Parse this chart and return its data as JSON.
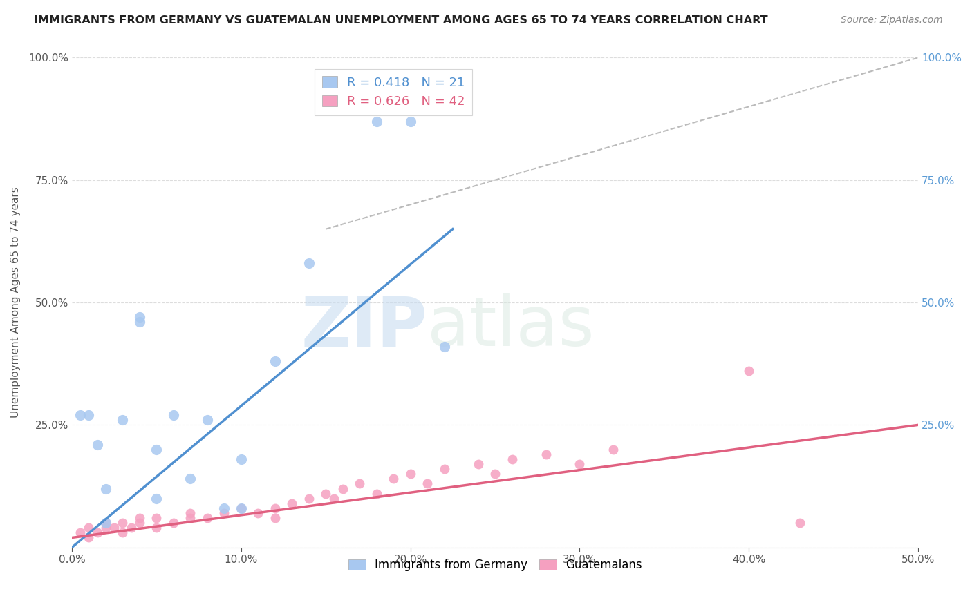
{
  "title": "IMMIGRANTS FROM GERMANY VS GUATEMALAN UNEMPLOYMENT AMONG AGES 65 TO 74 YEARS CORRELATION CHART",
  "source": "Source: ZipAtlas.com",
  "ylabel": "Unemployment Among Ages 65 to 74 years",
  "legend_labels": [
    "Immigrants from Germany",
    "Guatemalans"
  ],
  "legend_R": [
    0.418,
    0.626
  ],
  "legend_N": [
    21,
    42
  ],
  "color_blue": "#A8C8F0",
  "color_pink": "#F5A0C0",
  "color_blue_line": "#5090D0",
  "color_pink_line": "#E06080",
  "xlim": [
    0.0,
    0.5
  ],
  "ylim": [
    0.0,
    1.0
  ],
  "xticks": [
    0.0,
    0.1,
    0.2,
    0.3,
    0.4,
    0.5
  ],
  "yticks": [
    0.0,
    0.25,
    0.5,
    0.75,
    1.0
  ],
  "xtick_labels": [
    "0.0%",
    "10.0%",
    "20.0%",
    "30.0%",
    "40.0%",
    "50.0%"
  ],
  "ytick_labels_left": [
    "",
    "25.0%",
    "50.0%",
    "75.0%",
    "100.0%"
  ],
  "ytick_labels_right": [
    "",
    "25.0%",
    "50.0%",
    "75.0%",
    "100.0%"
  ],
  "blue_scatter_x": [
    0.005,
    0.01,
    0.015,
    0.02,
    0.02,
    0.03,
    0.04,
    0.04,
    0.05,
    0.05,
    0.06,
    0.07,
    0.08,
    0.09,
    0.1,
    0.1,
    0.12,
    0.14,
    0.18,
    0.2,
    0.22
  ],
  "blue_scatter_y": [
    0.27,
    0.27,
    0.21,
    0.05,
    0.12,
    0.26,
    0.47,
    0.46,
    0.2,
    0.1,
    0.27,
    0.14,
    0.26,
    0.08,
    0.18,
    0.08,
    0.38,
    0.58,
    0.87,
    0.87,
    0.41
  ],
  "pink_scatter_x": [
    0.005,
    0.01,
    0.01,
    0.015,
    0.02,
    0.02,
    0.025,
    0.03,
    0.03,
    0.035,
    0.04,
    0.04,
    0.05,
    0.05,
    0.06,
    0.07,
    0.07,
    0.08,
    0.09,
    0.1,
    0.11,
    0.12,
    0.12,
    0.13,
    0.14,
    0.15,
    0.155,
    0.16,
    0.17,
    0.18,
    0.19,
    0.2,
    0.21,
    0.22,
    0.24,
    0.25,
    0.26,
    0.28,
    0.3,
    0.32,
    0.4,
    0.43
  ],
  "pink_scatter_y": [
    0.03,
    0.02,
    0.04,
    0.03,
    0.04,
    0.05,
    0.04,
    0.03,
    0.05,
    0.04,
    0.05,
    0.06,
    0.04,
    0.06,
    0.05,
    0.06,
    0.07,
    0.06,
    0.07,
    0.08,
    0.07,
    0.08,
    0.06,
    0.09,
    0.1,
    0.11,
    0.1,
    0.12,
    0.13,
    0.11,
    0.14,
    0.15,
    0.13,
    0.16,
    0.17,
    0.15,
    0.18,
    0.19,
    0.17,
    0.2,
    0.36,
    0.05
  ],
  "blue_line_x": [
    0.0,
    0.225
  ],
  "blue_line_y": [
    0.0,
    0.65
  ],
  "pink_line_x": [
    0.0,
    0.5
  ],
  "pink_line_y": [
    0.02,
    0.25
  ],
  "ref_line_x": [
    0.15,
    0.5
  ],
  "ref_line_y": [
    0.65,
    1.0
  ]
}
